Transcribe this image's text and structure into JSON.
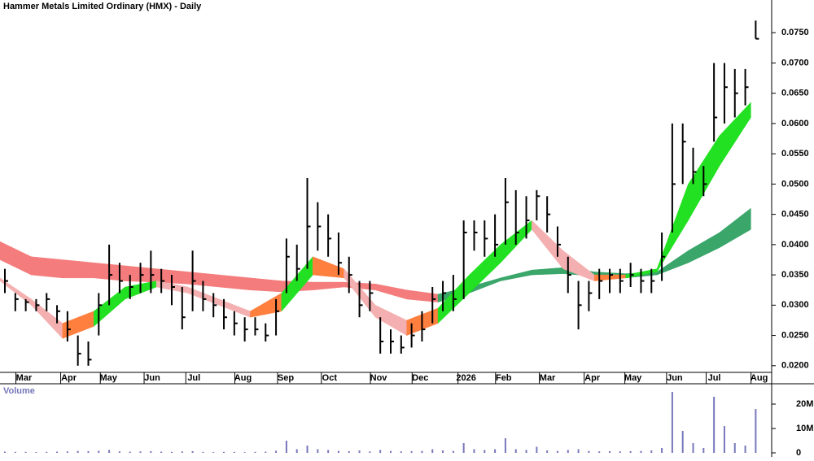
{
  "chart_data": [
    {
      "type": "ohlc",
      "title": "Hammer Metals Limited Ordinary (HMX) - Daily",
      "color": "#000000",
      "x": [
        0,
        1,
        2,
        3,
        4,
        5,
        6,
        7,
        8,
        9,
        10,
        11,
        12,
        13,
        14,
        15,
        16,
        17,
        18,
        19,
        20,
        21,
        22,
        23,
        24,
        25,
        26,
        27,
        28,
        29,
        30,
        31,
        32,
        33,
        34,
        35,
        36,
        37,
        38,
        39,
        40,
        41,
        42,
        43,
        44,
        45,
        46,
        47,
        48,
        49,
        50,
        51,
        52,
        53,
        54,
        55,
        56,
        57,
        58,
        59,
        60,
        61,
        62,
        63,
        64,
        65,
        66,
        67,
        68,
        69,
        70,
        71,
        72
      ],
      "high": [
        0.036,
        0.032,
        0.031,
        0.031,
        0.032,
        0.03,
        0.029,
        0.025,
        0.024,
        0.032,
        0.04,
        0.037,
        0.035,
        0.037,
        0.039,
        0.036,
        0.035,
        0.033,
        0.039,
        0.034,
        0.032,
        0.031,
        0.029,
        0.028,
        0.028,
        0.027,
        0.031,
        0.041,
        0.04,
        0.051,
        0.047,
        0.045,
        0.042,
        0.038,
        0.034,
        0.034,
        0.028,
        0.026,
        0.025,
        0.027,
        0.029,
        0.033,
        0.034,
        0.035,
        0.044,
        0.044,
        0.044,
        0.045,
        0.051,
        0.049,
        0.048,
        0.049,
        0.048,
        0.043,
        0.038,
        0.034,
        0.034,
        0.036,
        0.036,
        0.036,
        0.037,
        0.036,
        0.036,
        0.042,
        0.06,
        0.06,
        0.056,
        0.053,
        0.07,
        0.07,
        0.069,
        0.069,
        0.077
      ],
      "low": [
        0.032,
        0.029,
        0.029,
        0.029,
        0.029,
        0.027,
        0.024,
        0.02,
        0.02,
        0.025,
        0.03,
        0.032,
        0.031,
        0.032,
        0.032,
        0.032,
        0.03,
        0.026,
        0.029,
        0.029,
        0.028,
        0.026,
        0.025,
        0.024,
        0.025,
        0.024,
        0.025,
        0.032,
        0.034,
        0.036,
        0.039,
        0.038,
        0.035,
        0.032,
        0.028,
        0.029,
        0.022,
        0.022,
        0.022,
        0.023,
        0.024,
        0.027,
        0.029,
        0.029,
        0.031,
        0.039,
        0.038,
        0.038,
        0.04,
        0.04,
        0.041,
        0.044,
        0.042,
        0.038,
        0.032,
        0.026,
        0.029,
        0.031,
        0.032,
        0.032,
        0.033,
        0.032,
        0.032,
        0.034,
        0.042,
        0.05,
        0.05,
        0.048,
        0.057,
        0.06,
        0.061,
        0.063,
        0.074
      ],
      "close": [
        0.034,
        0.031,
        0.0305,
        0.03,
        0.031,
        0.029,
        0.026,
        0.022,
        0.021,
        0.03,
        0.035,
        0.034,
        0.033,
        0.035,
        0.035,
        0.034,
        0.033,
        0.028,
        0.034,
        0.031,
        0.03,
        0.028,
        0.027,
        0.026,
        0.026,
        0.025,
        0.029,
        0.038,
        0.036,
        0.043,
        0.043,
        0.041,
        0.037,
        0.035,
        0.03,
        0.032,
        0.024,
        0.024,
        0.023,
        0.025,
        0.026,
        0.031,
        0.032,
        0.031,
        0.042,
        0.042,
        0.041,
        0.04,
        0.047,
        0.042,
        0.044,
        0.048,
        0.045,
        0.04,
        0.035,
        0.03,
        0.032,
        0.034,
        0.035,
        0.034,
        0.035,
        0.034,
        0.034,
        0.038,
        0.05,
        0.057,
        0.052,
        0.05,
        0.061,
        0.066,
        0.065,
        0.066,
        0.074
      ],
      "bands": [
        {
          "x": [
            0,
            3,
            6,
            9,
            12,
            15,
            18,
            21,
            24,
            27,
            30,
            33,
            36,
            39,
            42,
            45,
            48,
            51,
            54,
            57,
            60,
            63,
            66,
            69,
            72
          ],
          "upper": [
            0.0405,
            0.038,
            0.0375,
            0.037,
            0.0365,
            0.036,
            0.0355,
            0.035,
            0.0345,
            0.034,
            0.0338,
            0.0338,
            0.0335,
            0.0325,
            0.0318,
            0.033,
            0.0345,
            0.0358,
            0.0362,
            0.0355,
            0.0352,
            0.0355,
            0.039,
            0.042,
            0.046
          ],
          "lower": [
            0.0375,
            0.035,
            0.0345,
            0.0345,
            0.034,
            0.0338,
            0.0335,
            0.033,
            0.0325,
            0.0322,
            0.0325,
            0.033,
            0.0325,
            0.031,
            0.0305,
            0.032,
            0.034,
            0.035,
            0.0352,
            0.0348,
            0.0345,
            0.035,
            0.037,
            0.0395,
            0.0425
          ],
          "colors": [
            "#f47c7c",
            "#f47c7c",
            "#f47c7c",
            "#f47c7c",
            "#f47c7c",
            "#f47c7c",
            "#f47c7c",
            "#f47c7c",
            "#f47c7c",
            "#f47c7c",
            "#f47c7c",
            "#f47c7c",
            "#f47c7c",
            "#f47c7c",
            "#3aa66a",
            "#3aa66a",
            "#3aa66a",
            "#3aa66a",
            "#3aa66a",
            "#3aa66a",
            "#3aa66a",
            "#3aa66a",
            "#3aa66a",
            "#3aa66a",
            "#3aa66a"
          ]
        },
        {
          "x": [
            0,
            3,
            6,
            9,
            12,
            15,
            18,
            21,
            24,
            27,
            30,
            33,
            36,
            39,
            42,
            45,
            48,
            51,
            54,
            57,
            60,
            63,
            66,
            69,
            72
          ],
          "upper": [
            0.0345,
            0.031,
            0.027,
            0.029,
            0.033,
            0.034,
            0.033,
            0.031,
            0.029,
            0.032,
            0.038,
            0.036,
            0.03,
            0.0275,
            0.0295,
            0.035,
            0.04,
            0.044,
            0.039,
            0.035,
            0.035,
            0.036,
            0.05,
            0.058,
            0.0635
          ],
          "lower": [
            0.034,
            0.03,
            0.0245,
            0.0265,
            0.031,
            0.033,
            0.032,
            0.03,
            0.028,
            0.029,
            0.035,
            0.0345,
            0.028,
            0.025,
            0.027,
            0.032,
            0.037,
            0.0425,
            0.036,
            0.034,
            0.0345,
            0.0355,
            0.044,
            0.053,
            0.061
          ],
          "colors": [
            "#f4b0b0",
            "#f4b0b0",
            "#ff7f3f",
            "#22e022",
            "#22e022",
            "#f4b0b0",
            "#f4b0b0",
            "#f4b0b0",
            "#ff7f3f",
            "#22e022",
            "#ff7f3f",
            "#f4b0b0",
            "#f4b0b0",
            "#ff7f3f",
            "#22e022",
            "#22e022",
            "#22e022",
            "#f4b0b0",
            "#f4b0b0",
            "#ff7f3f",
            "#22e022",
            "#22e022",
            "#22e022",
            "#22e022",
            "#22e022"
          ]
        }
      ],
      "xlim": [
        0,
        74
      ],
      "xticks": [
        {
          "value": 2.3,
          "label": "Mar"
        },
        {
          "value": 6.6,
          "label": "Apr"
        },
        {
          "value": 10.4,
          "label": "May"
        },
        {
          "value": 14.6,
          "label": "Jun"
        },
        {
          "value": 18.6,
          "label": "Jul"
        },
        {
          "value": 23.3,
          "label": "Aug"
        },
        {
          "value": 27.4,
          "label": "Sep"
        },
        {
          "value": 31.6,
          "label": "Oct"
        },
        {
          "value": 36.3,
          "label": "Nov"
        },
        {
          "value": 40.3,
          "label": "Dec"
        },
        {
          "value": 44.7,
          "label": "2026"
        },
        {
          "value": 48.3,
          "label": "Feb"
        },
        {
          "value": 52.5,
          "label": "Mar"
        },
        {
          "value": 56.8,
          "label": "Apr"
        },
        {
          "value": 60.7,
          "label": "May"
        },
        {
          "value": 64.7,
          "label": "Jun"
        },
        {
          "value": 68.5,
          "label": "Jul"
        },
        {
          "value": 72.8,
          "label": "Aug"
        }
      ],
      "ylim": [
        0.0189,
        0.0804
      ],
      "yticks": [
        {
          "value": 0.02,
          "label": "0.0200"
        },
        {
          "value": 0.025,
          "label": "0.0250"
        },
        {
          "value": 0.03,
          "label": "0.0300"
        },
        {
          "value": 0.035,
          "label": "0.0350"
        },
        {
          "value": 0.04,
          "label": "0.0400"
        },
        {
          "value": 0.045,
          "label": "0.0450"
        },
        {
          "value": 0.05,
          "label": "0.0500"
        },
        {
          "value": 0.055,
          "label": "0.0550"
        },
        {
          "value": 0.06,
          "label": "0.0600"
        },
        {
          "value": 0.065,
          "label": "0.0650"
        },
        {
          "value": 0.07,
          "label": "0.0700"
        },
        {
          "value": 0.075,
          "label": "0.0750"
        }
      ]
    },
    {
      "type": "bar",
      "title": "Volume",
      "color": "#7777bb",
      "values": [
        500000,
        400000,
        400000,
        300000,
        400000,
        500000,
        600000,
        800000,
        700000,
        900000,
        1200000,
        600000,
        500000,
        600000,
        700000,
        500000,
        400000,
        600000,
        700000,
        400000,
        300000,
        400000,
        400000,
        300000,
        400000,
        500000,
        900000,
        5000000,
        1500000,
        3000000,
        1500000,
        1200000,
        800000,
        700000,
        1000000,
        600000,
        1200000,
        800000,
        600000,
        700000,
        800000,
        1500000,
        1000000,
        800000,
        4000000,
        1500000,
        1200000,
        1500000,
        6000000,
        1500000,
        1200000,
        2500000,
        1000000,
        800000,
        1200000,
        1500000,
        800000,
        600000,
        700000,
        600000,
        700000,
        800000,
        1000000,
        2000000,
        25000000,
        9000000,
        4000000,
        2000000,
        23000000,
        11000000,
        4000000,
        3000000,
        18000000
      ],
      "ylim": [
        0,
        28000000
      ],
      "yticks": [
        {
          "value": 0,
          "label": "0"
        },
        {
          "value": 10000000,
          "label": "10M"
        },
        {
          "value": 20000000,
          "label": "20M"
        }
      ]
    }
  ]
}
